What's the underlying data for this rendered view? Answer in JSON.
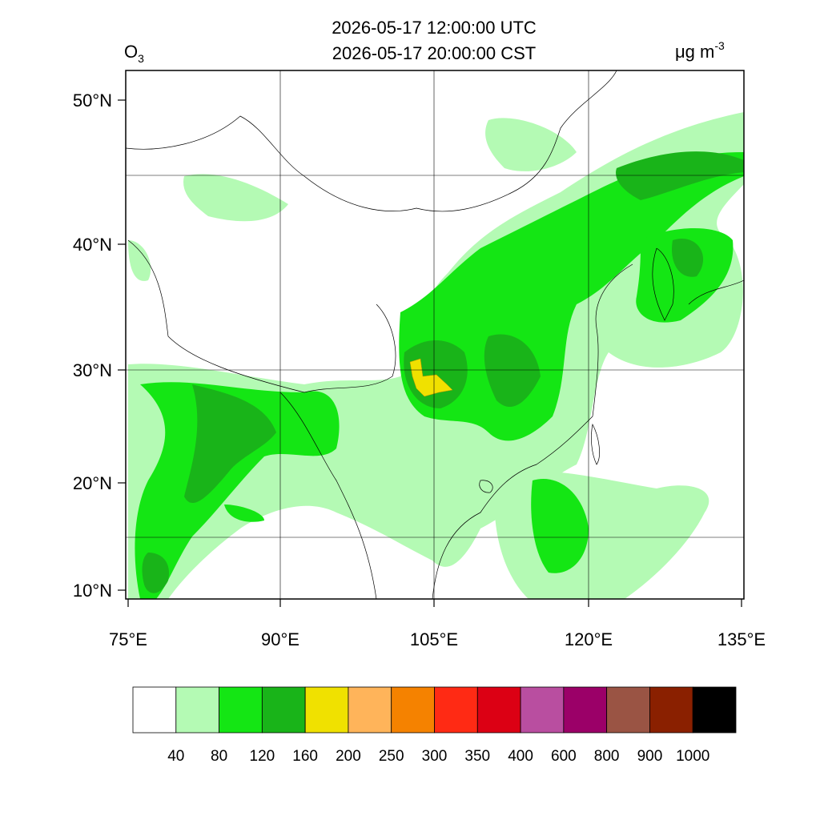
{
  "title_lines": [
    "2026-05-17 12:00:00 UTC",
    "2026-05-17 20:00:00 CST"
  ],
  "species": {
    "base": "O",
    "subscript": "3"
  },
  "units": {
    "base": "μg m",
    "superscript": "-3"
  },
  "lat_labels": [
    "50°N",
    "40°N",
    "30°N",
    "20°N",
    "10°N"
  ],
  "lon_labels": [
    "75°E",
    "90°E",
    "105°E",
    "120°E",
    "135°E"
  ],
  "colorbar": {
    "colors": [
      "#ffffff",
      "#b4fab4",
      "#14e614",
      "#19b419",
      "#f0e100",
      "#ffb45a",
      "#f58200",
      "#ff2a14",
      "#dc0014",
      "#b94ea0",
      "#9b0068",
      "#9a5444",
      "#8a2000",
      "#000000"
    ],
    "levels": [
      40,
      80,
      120,
      160,
      200,
      250,
      300,
      350,
      400,
      600,
      800,
      900,
      1000
    ]
  }
}
